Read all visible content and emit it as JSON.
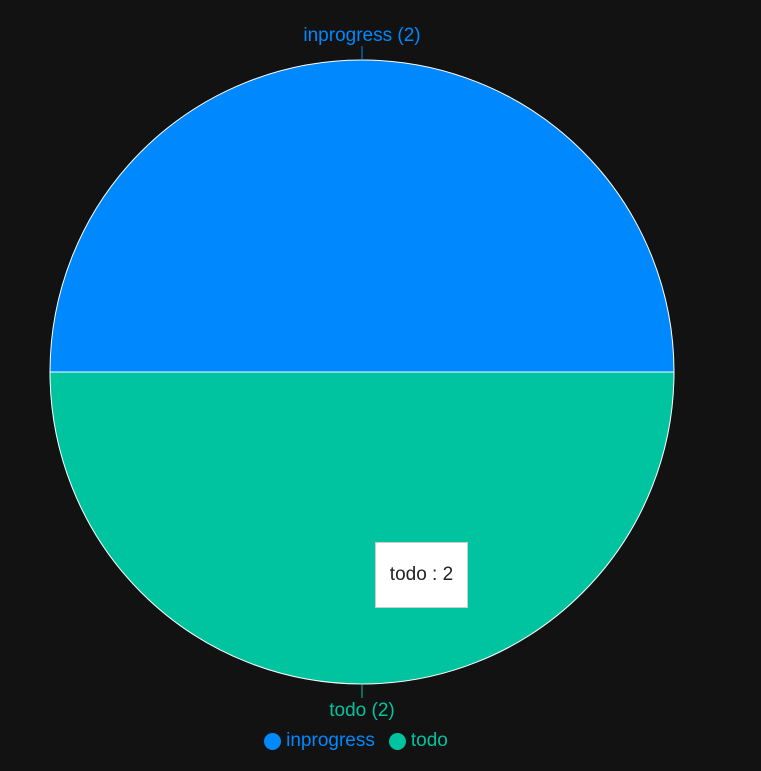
{
  "chart_data": {
    "type": "pie",
    "categories": [
      "inprogress",
      "todo"
    ],
    "values": [
      2,
      2
    ],
    "slice_labels": [
      "inprogress (2)",
      "todo (2)"
    ],
    "colors": [
      "#0088fe",
      "#00c49f"
    ],
    "legend": [
      "inprogress",
      "todo"
    ],
    "legend_position": "bottom"
  },
  "tooltip": {
    "text": "todo : 2"
  }
}
